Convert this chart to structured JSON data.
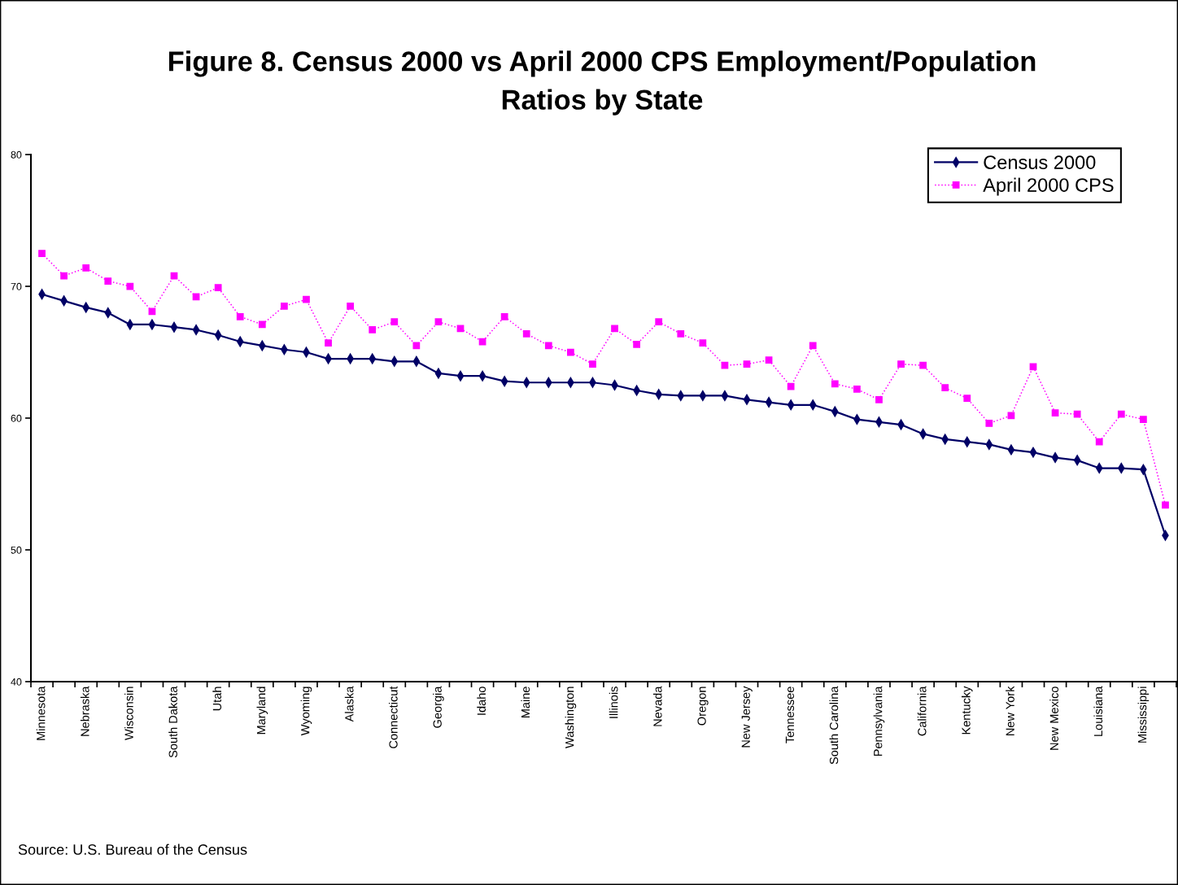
{
  "chart_data": {
    "type": "line",
    "title": "Figure 8. Census 2000 vs April 2000 CPS Employment/Population\nRatios by State",
    "categories": [
      "Minnesota",
      null,
      "Nebraska",
      null,
      "Wisconsin",
      null,
      "South Dakota",
      null,
      "Utah",
      null,
      "Maryland",
      null,
      "Wyoming",
      null,
      "Alaska",
      null,
      "Connecticut",
      null,
      "Georgia",
      null,
      "Idaho",
      null,
      "Maine",
      null,
      "Washington",
      null,
      "Illinois",
      null,
      "Nevada",
      null,
      "Oregon",
      null,
      "New Jersey",
      null,
      "Tennessee",
      null,
      "South Carolina",
      null,
      "Pennsylvania",
      null,
      "California",
      null,
      "Kentucky",
      null,
      "New York",
      null,
      "New Mexico",
      null,
      "Louisiana",
      null,
      "Mississippi",
      null
    ],
    "series": [
      {
        "name": "Census 2000",
        "color": "#000066",
        "marker": "diamond",
        "line_style": "solid",
        "values": [
          69.4,
          68.9,
          68.4,
          68.0,
          67.1,
          67.1,
          66.9,
          66.7,
          66.3,
          65.8,
          65.5,
          65.2,
          65.0,
          64.5,
          64.5,
          64.5,
          64.3,
          64.3,
          63.4,
          63.2,
          63.2,
          62.8,
          62.7,
          62.7,
          62.7,
          62.7,
          62.5,
          62.1,
          61.8,
          61.7,
          61.7,
          61.7,
          61.4,
          61.2,
          61.0,
          61.0,
          60.5,
          59.9,
          59.7,
          59.5,
          58.8,
          58.4,
          58.2,
          58.0,
          57.6,
          57.4,
          57.0,
          56.8,
          56.2,
          56.2,
          56.1,
          51.1
        ]
      },
      {
        "name": "April 2000 CPS",
        "color": "#ff00ff",
        "marker": "square",
        "line_style": "dotted",
        "values": [
          72.5,
          70.8,
          71.4,
          70.4,
          70.0,
          68.1,
          70.8,
          69.2,
          69.9,
          67.7,
          67.1,
          68.5,
          69.0,
          65.7,
          68.5,
          66.7,
          67.3,
          65.5,
          67.3,
          66.8,
          65.8,
          67.7,
          66.4,
          65.5,
          65.0,
          64.1,
          66.8,
          65.6,
          67.3,
          66.4,
          65.7,
          64.0,
          64.1,
          64.4,
          62.4,
          65.5,
          62.6,
          62.2,
          61.4,
          64.1,
          64.0,
          62.3,
          61.5,
          59.6,
          60.2,
          63.9,
          60.4,
          60.3,
          58.2,
          60.3,
          59.9,
          53.4
        ]
      }
    ],
    "ylim": [
      40,
      80
    ],
    "yticks": [
      40,
      50,
      60,
      70,
      80
    ],
    "grid": false,
    "legend": "top right",
    "annotations": [
      "Source: U.S. Bureau of the Census"
    ]
  }
}
